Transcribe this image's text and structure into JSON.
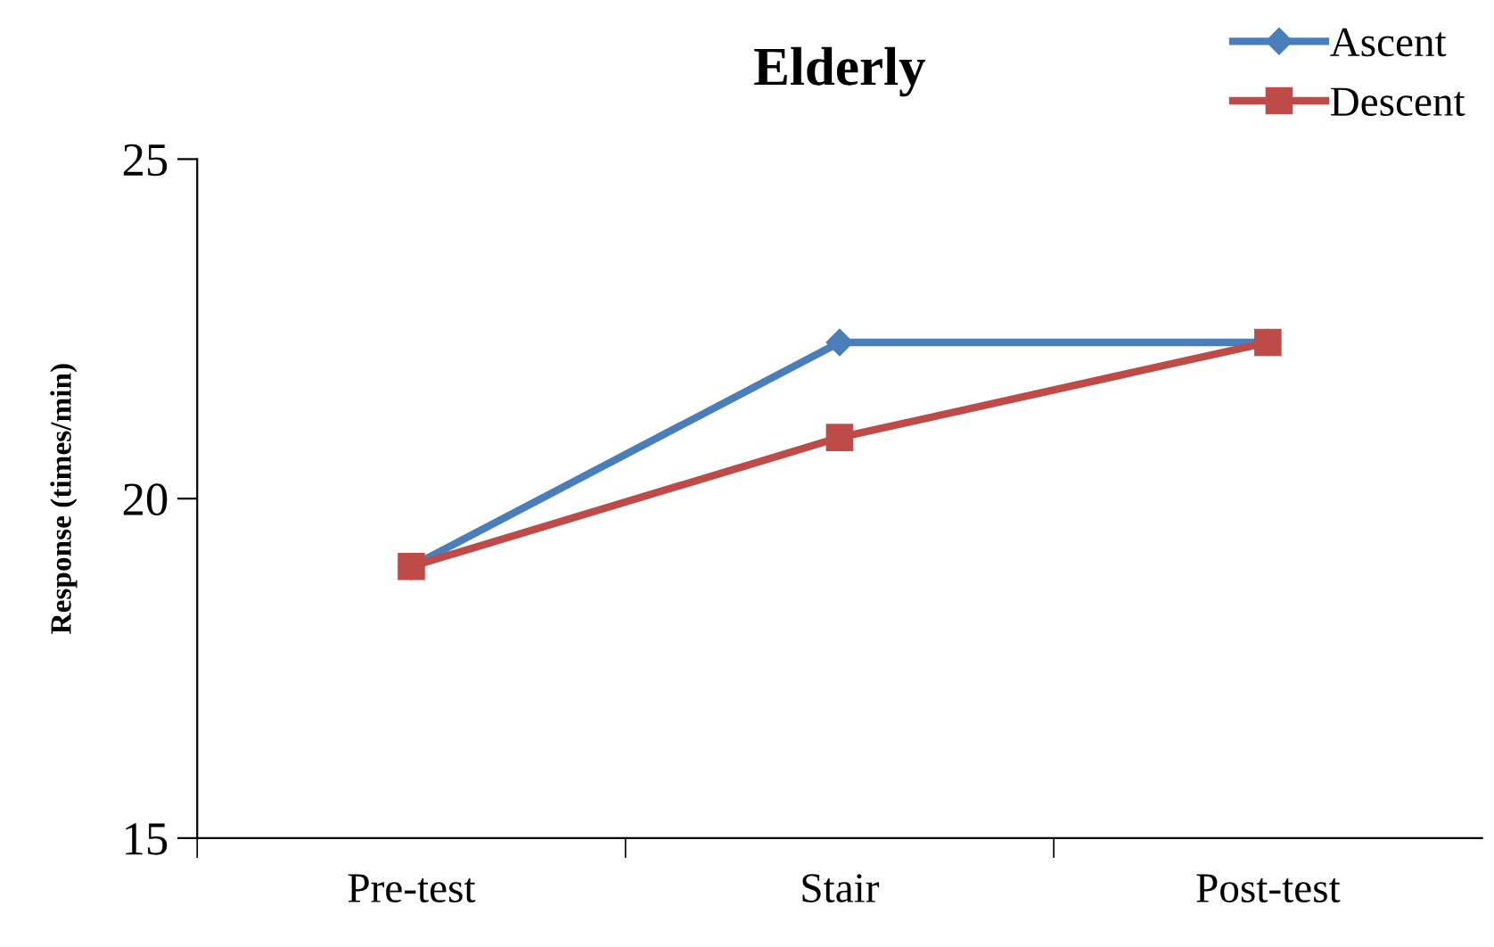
{
  "chart_data": {
    "type": "line",
    "title": "Elderly",
    "ylabel": "Response (times/min)",
    "categories": [
      "Pre-test",
      "Stair",
      "Post-test"
    ],
    "series": [
      {
        "name": "Ascent",
        "color": "#4a7ebb",
        "marker": "diamond",
        "values": [
          19.0,
          22.3,
          22.3
        ]
      },
      {
        "name": "Descent",
        "color": "#be4b48",
        "marker": "square",
        "values": [
          19.0,
          20.9,
          22.3
        ]
      }
    ],
    "ylim": [
      15,
      25
    ],
    "yticks": [
      15,
      20,
      25
    ],
    "grid": false,
    "legend": "top right",
    "line_style": "solid"
  }
}
